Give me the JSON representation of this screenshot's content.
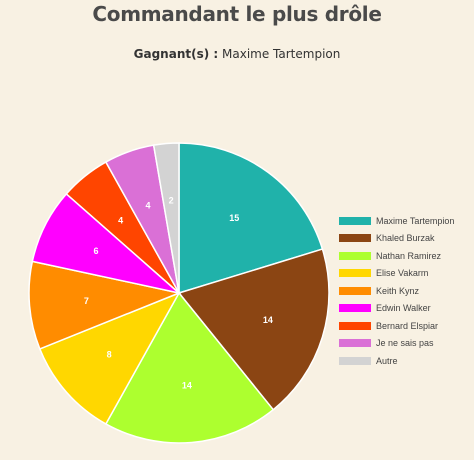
{
  "title": "Commandant le plus drôle",
  "subtitle": {
    "label": "Gagnant(s) :",
    "value": "Maxime Tartempion"
  },
  "chart_data": {
    "type": "pie",
    "title": "Commandant le plus drôle",
    "legend_position": "right",
    "start_angle_deg": 0,
    "direction": "clockwise",
    "slices": [
      {
        "label": "Maxime Tartempion",
        "value": 15,
        "color": "#20b2aa"
      },
      {
        "label": "Khaled Burzak",
        "value": 14,
        "color": "#8b4513"
      },
      {
        "label": "Nathan Ramirez",
        "value": 14,
        "color": "#adff2f"
      },
      {
        "label": "Elise Vakarm",
        "value": 8,
        "color": "#ffd700"
      },
      {
        "label": "Keith Kynz",
        "value": 7,
        "color": "#ff8c00"
      },
      {
        "label": "Edwin Walker",
        "value": 6,
        "color": "#ff00ff"
      },
      {
        "label": "Bernard Elspiar",
        "value": 4,
        "color": "#ff4500"
      },
      {
        "label": "Je ne sais pas",
        "value": 4,
        "color": "#da70d6"
      },
      {
        "label": "Autre",
        "value": 2,
        "color": "#d3d3d3"
      }
    ]
  }
}
